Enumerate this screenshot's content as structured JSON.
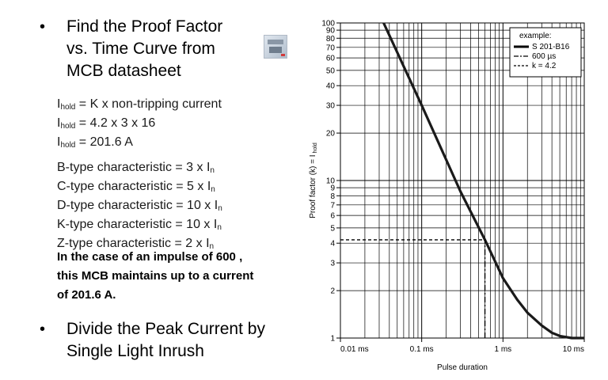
{
  "slide": {
    "bullet1": {
      "marker": "•",
      "lines": [
        "Find the Proof Factor",
        "vs. Time Curve from",
        "MCB datasheet"
      ]
    },
    "formulas": [
      {
        "main": "I",
        "sub": "hold",
        "rest": " = K x non-tripping current"
      },
      {
        "main": "I",
        "sub": "hold",
        "rest": " = 4.2 x 3 x 16"
      },
      {
        "main": "I",
        "sub": "hold",
        "rest": " = 201.6 A"
      }
    ],
    "characteristics": [
      {
        "text": "B-type characteristic = 3 x I",
        "sub": "n"
      },
      {
        "text": "C-type characteristic = 5 x I",
        "sub": "n"
      },
      {
        "text": "D-type characteristic = 10 x I",
        "sub": "n"
      },
      {
        "text": "K-type characteristic = 10 x I",
        "sub": "n"
      },
      {
        "text": "Z-type characteristic = 2 x I",
        "sub": "n"
      }
    ],
    "note": [
      "In the case of an impulse of 600 ,",
      "this MCB maintains up to a current",
      "of 201.6 A."
    ],
    "bullet2": {
      "marker": "•",
      "lines": [
        "Divide the Peak Current by",
        "Single Light Inrush"
      ]
    }
  },
  "chart_data": {
    "type": "line",
    "xlabel": "Pulse duration",
    "ylabel": "Proof factor (k) = I",
    "ylabel_sub": "hold",
    "x_scale": "log",
    "y_scale": "log",
    "x_range_ms": [
      0.01,
      10
    ],
    "y_range": [
      1,
      100
    ],
    "grid": true,
    "x_ticks": [
      {
        "value_ms": 0.01,
        "label": "0.01 ms"
      },
      {
        "value_ms": 0.1,
        "label": "0.1 ms"
      },
      {
        "value_ms": 1,
        "label": "1 ms"
      },
      {
        "value_ms": 10,
        "label": "10 ms"
      }
    ],
    "y_ticks": [
      {
        "value": 1,
        "label": "1"
      },
      {
        "value": 2,
        "label": "2"
      },
      {
        "value": 3,
        "label": "3"
      },
      {
        "value": 4,
        "label": "4"
      },
      {
        "value": 5,
        "label": "5"
      },
      {
        "value": 6,
        "label": "6"
      },
      {
        "value": 7,
        "label": "7"
      },
      {
        "value": 8,
        "label": "8"
      },
      {
        "value": 9,
        "label": "9"
      },
      {
        "value": 10,
        "label": "10"
      },
      {
        "value": 20,
        "label": "20"
      },
      {
        "value": 30,
        "label": "30"
      },
      {
        "value": 40,
        "label": "40"
      },
      {
        "value": 50,
        "label": "50"
      },
      {
        "value": 60,
        "label": "60"
      },
      {
        "value": 70,
        "label": "70"
      },
      {
        "value": 80,
        "label": "80"
      },
      {
        "value": 90,
        "label": "90"
      },
      {
        "value": 100,
        "label": "100"
      }
    ],
    "legend": {
      "title": "example:",
      "placement": "top-right",
      "entries": [
        {
          "style": "solid",
          "label": "S 201-B16"
        },
        {
          "style": "dashdot",
          "label": "600 µs"
        },
        {
          "style": "dashed",
          "label": "k = 4.2"
        }
      ]
    },
    "series": [
      {
        "name": "S 201-B16",
        "style": "solid",
        "color": "#1a1a1a",
        "points": [
          {
            "x_ms": 0.034,
            "y": 100
          },
          {
            "x_ms": 0.1,
            "y": 30
          },
          {
            "x_ms": 0.3,
            "y": 8.5
          },
          {
            "x_ms": 0.6,
            "y": 4.2
          },
          {
            "x_ms": 1.0,
            "y": 2.4
          },
          {
            "x_ms": 1.5,
            "y": 1.75
          },
          {
            "x_ms": 2.0,
            "y": 1.45
          },
          {
            "x_ms": 3.0,
            "y": 1.2
          },
          {
            "x_ms": 4.0,
            "y": 1.08
          },
          {
            "x_ms": 5.0,
            "y": 1.03
          },
          {
            "x_ms": 7.0,
            "y": 1.0
          },
          {
            "x_ms": 10,
            "y": 1.0
          }
        ]
      },
      {
        "name": "600 µs",
        "style": "dashdot",
        "x_ms": 0.6,
        "y_from": 1,
        "y_to": 4.2
      },
      {
        "name": "k = 4.2",
        "style": "dashed",
        "y": 4.2,
        "x_from": 0.01,
        "x_to": 0.6
      }
    ]
  }
}
